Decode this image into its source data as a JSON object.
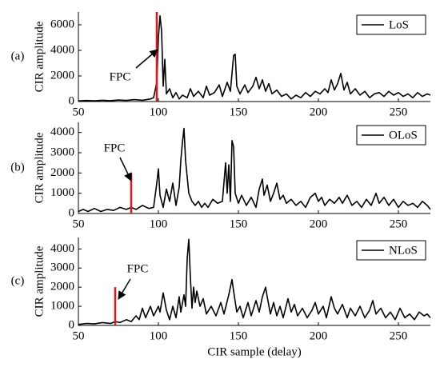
{
  "chart_data": [
    {
      "type": "line",
      "panel_label": "(a)",
      "ylabel": "CIR amplitude",
      "xlim": [
        50,
        270
      ],
      "xticks": [
        50,
        100,
        150,
        200,
        250
      ],
      "ylim": [
        0,
        7000
      ],
      "yticks": [
        0,
        2000,
        4000,
        6000
      ],
      "legend": "upper right",
      "x": [
        50,
        55,
        60,
        65,
        70,
        75,
        80,
        85,
        90,
        95,
        97,
        99,
        100,
        101,
        102,
        103,
        104,
        105,
        107,
        109,
        111,
        113,
        115,
        118,
        120,
        122,
        125,
        128,
        130,
        132,
        135,
        138,
        140,
        143,
        145,
        147,
        148,
        149,
        151,
        154,
        156,
        159,
        161,
        163,
        165,
        167,
        169,
        171,
        174,
        177,
        180,
        183,
        186,
        189,
        192,
        195,
        198,
        201,
        204,
        206,
        208,
        210,
        212,
        214,
        216,
        218,
        220,
        223,
        226,
        229,
        232,
        235,
        238,
        241,
        244,
        247,
        250,
        253,
        256,
        259,
        262,
        265,
        268,
        270
      ],
      "series": [
        {
          "name": "LoS",
          "color": "#000000",
          "values": [
            50,
            80,
            60,
            100,
            70,
            120,
            90,
            150,
            100,
            200,
            300,
            1500,
            5000,
            6700,
            5500,
            1200,
            3300,
            600,
            1000,
            300,
            700,
            200,
            500,
            300,
            1000,
            400,
            800,
            300,
            1200,
            500,
            700,
            1300,
            400,
            1500,
            800,
            3600,
            3700,
            1200,
            600,
            1300,
            700,
            1200,
            1900,
            1000,
            1700,
            800,
            1400,
            600,
            900,
            400,
            600,
            200,
            500,
            300,
            700,
            400,
            800,
            600,
            1000,
            700,
            1700,
            900,
            1400,
            2200,
            900,
            1500,
            600,
            1000,
            500,
            800,
            300,
            600,
            700,
            400,
            800,
            500,
            700,
            400,
            600,
            300,
            700,
            400,
            600,
            500
          ]
        }
      ],
      "fpc": {
        "label": "FPC",
        "x": 99,
        "value": 7000,
        "color": "#e8141b"
      }
    },
    {
      "type": "line",
      "panel_label": "(b)",
      "ylabel": "CIR amplitude",
      "xlim": [
        50,
        270
      ],
      "xticks": [
        50,
        100,
        150,
        200,
        250
      ],
      "ylim": [
        0,
        4500
      ],
      "yticks": [
        0,
        1000,
        2000,
        3000,
        4000
      ],
      "legend": "upper right",
      "x": [
        50,
        53,
        56,
        60,
        64,
        68,
        72,
        76,
        80,
        83,
        86,
        90,
        94,
        97,
        99,
        100,
        101,
        103,
        105,
        107,
        109,
        111,
        113,
        114,
        115,
        116,
        117,
        119,
        121,
        123,
        125,
        127,
        129,
        131,
        134,
        137,
        140,
        142,
        143,
        144,
        145,
        146,
        147,
        148,
        150,
        152,
        155,
        158,
        161,
        163,
        165,
        166,
        168,
        170,
        172,
        174,
        176,
        178,
        180,
        183,
        186,
        189,
        192,
        195,
        198,
        200,
        202,
        204,
        207,
        210,
        213,
        215,
        218,
        221,
        224,
        227,
        230,
        233,
        236,
        238,
        241,
        244,
        247,
        250,
        253,
        256,
        259,
        262,
        265,
        268,
        270
      ],
      "series": [
        {
          "name": "OLoS",
          "color": "#000000",
          "values": [
            100,
            200,
            100,
            250,
            100,
            200,
            150,
            300,
            200,
            300,
            200,
            400,
            250,
            300,
            1500,
            2200,
            900,
            300,
            1200,
            600,
            1500,
            400,
            1300,
            2600,
            3500,
            4200,
            2600,
            1000,
            600,
            400,
            600,
            300,
            500,
            300,
            700,
            500,
            600,
            2500,
            1000,
            2400,
            600,
            3600,
            3300,
            1000,
            500,
            900,
            400,
            800,
            300,
            1200,
            1700,
            900,
            1400,
            600,
            1000,
            1500,
            700,
            900,
            500,
            700,
            400,
            600,
            300,
            800,
            1000,
            600,
            800,
            400,
            700,
            500,
            800,
            500,
            900,
            400,
            600,
            300,
            700,
            400,
            1000,
            500,
            800,
            400,
            700,
            300,
            600,
            400,
            500,
            300,
            600,
            400,
            200
          ]
        }
      ],
      "fpc": {
        "label": "FPC",
        "x": 83,
        "value": 2000,
        "color": "#e8141b"
      }
    },
    {
      "type": "line",
      "panel_label": "(c)",
      "ylabel": "CIR amplitude",
      "xlabel": "CIR sample (delay)",
      "xlim": [
        50,
        270
      ],
      "xticks": [
        50,
        100,
        150,
        200,
        250
      ],
      "ylim": [
        0,
        4600
      ],
      "yticks": [
        0,
        1000,
        2000,
        3000,
        4000
      ],
      "legend": "upper right",
      "x": [
        50,
        55,
        60,
        65,
        70,
        73,
        76,
        80,
        83,
        86,
        88,
        90,
        92,
        95,
        97,
        100,
        101,
        103,
        105,
        107,
        109,
        111,
        113,
        114,
        116,
        117,
        118,
        119,
        120,
        121,
        122,
        123,
        124,
        126,
        128,
        130,
        133,
        136,
        139,
        141,
        144,
        146,
        147,
        149,
        151,
        153,
        156,
        158,
        161,
        163,
        165,
        167,
        168,
        170,
        172,
        174,
        176,
        178,
        181,
        183,
        185,
        187,
        190,
        193,
        196,
        198,
        200,
        203,
        205,
        208,
        210,
        212,
        215,
        218,
        220,
        223,
        226,
        229,
        232,
        234,
        236,
        239,
        242,
        245,
        248,
        251,
        254,
        257,
        260,
        263,
        266,
        268,
        270
      ],
      "series": [
        {
          "name": "NLoS",
          "color": "#000000",
          "values": [
            50,
            100,
            80,
            150,
            100,
            200,
            150,
            300,
            200,
            500,
            300,
            900,
            400,
            1000,
            500,
            1000,
            700,
            1700,
            800,
            300,
            1000,
            400,
            1500,
            700,
            1600,
            1000,
            3500,
            4500,
            2500,
            900,
            2000,
            1200,
            1800,
            1000,
            1400,
            600,
            1000,
            500,
            1200,
            600,
            1600,
            2400,
            1800,
            700,
            1000,
            400,
            1200,
            500,
            1300,
            700,
            1500,
            2000,
            1500,
            600,
            1200,
            500,
            1000,
            400,
            1400,
            700,
            1100,
            500,
            900,
            400,
            800,
            1200,
            600,
            1000,
            400,
            1500,
            900,
            600,
            1100,
            400,
            900,
            500,
            1000,
            400,
            800,
            1300,
            600,
            900,
            400,
            700,
            300,
            900,
            400,
            600,
            300,
            700,
            500,
            600,
            400
          ]
        }
      ],
      "fpc": {
        "label": "FPC",
        "x": 73,
        "value": 2000,
        "color": "#e8141b"
      }
    }
  ]
}
